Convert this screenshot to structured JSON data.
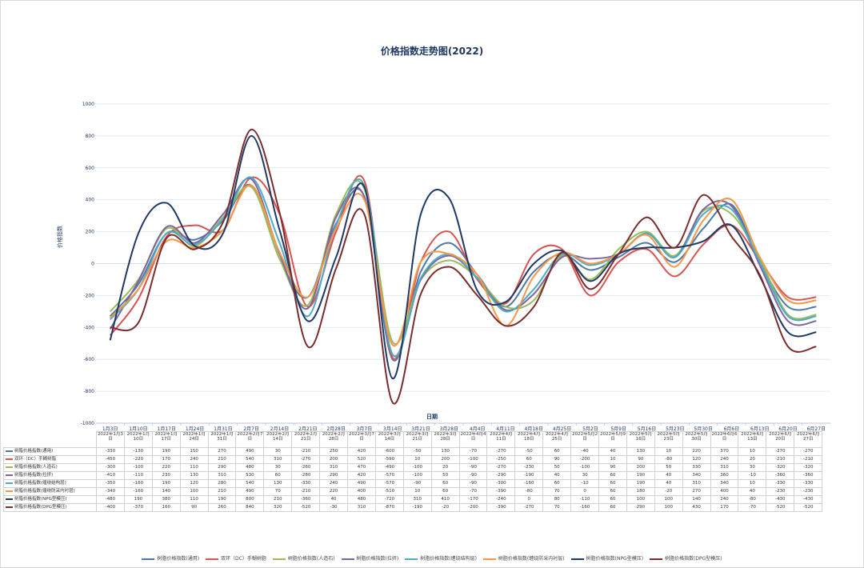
{
  "chart_data": {
    "type": "line",
    "title": "价格指数走势图(2022)",
    "xlabel": "日期",
    "ylabel": "价格指数",
    "ylim": [
      -1000,
      1000
    ],
    "yticks": [
      1000,
      800,
      600,
      400,
      200,
      0,
      -200,
      -400,
      -600,
      -800,
      -1000
    ],
    "grid": true,
    "legend_position": "bottom",
    "x": [
      "1月3日",
      "1月10日",
      "1月17日",
      "1月24日",
      "1月31日",
      "2月7日",
      "2月14日",
      "2月21日",
      "2月28日",
      "3月7日",
      "3月14日",
      "3月21日",
      "3月28日",
      "4月4日",
      "4月11日",
      "4月18日",
      "4月25日",
      "5月2日",
      "5月9日",
      "5月16日",
      "5月23日",
      "5月30日",
      "6月6日",
      "6月13日",
      "6月20日",
      "6月27日"
    ],
    "table_headers": [
      "2022年1月3日",
      "2022年1月10日",
      "2022年1月17日",
      "2022年1月24日",
      "2022年1月31日",
      "2022年2月7日",
      "2022年2月14日",
      "2022年2月21日",
      "2022年2月28日",
      "2022年3月7日",
      "2022年3月14日",
      "2022年3月21日",
      "2022年3月28日",
      "2022年4月4日",
      "2022年4月11日",
      "2022年4月18日",
      "2022年4月25日",
      "2022年5月2日",
      "2022年5月9日",
      "2022年5月16日",
      "2022年5月23日",
      "2022年5月30日",
      "2022年6月6日",
      "2022年6月13日",
      "2022年6月20日",
      "2022年6月27日"
    ],
    "series": [
      {
        "name": "树脂价格指数(通用)",
        "color": "#4e79a7",
        "values": [
          -330,
          -130,
          190,
          150,
          270,
          490,
          30,
          -210,
          250,
          420,
          -600,
          -50,
          130,
          -70,
          -270,
          -50,
          60,
          -40,
          40,
          130,
          10,
          220,
          370,
          10,
          -270,
          -270
        ]
      },
      {
        "name": "双环（DC）手糊树脂",
        "color": "#d9534f",
        "values": [
          -450,
          -220,
          170,
          240,
          210,
          540,
          310,
          -270,
          200,
          520,
          -590,
          10,
          200,
          -100,
          -250,
          60,
          90,
          -200,
          10,
          90,
          -80,
          120,
          240,
          20,
          -210,
          -210
        ]
      },
      {
        "name": "树脂价格指数(人造石)",
        "color": "#9bbb59",
        "values": [
          -300,
          -100,
          220,
          110,
          290,
          480,
          30,
          -260,
          310,
          470,
          -490,
          -100,
          20,
          -90,
          -270,
          -230,
          50,
          -100,
          90,
          200,
          50,
          330,
          310,
          30,
          -320,
          -320
        ]
      },
      {
        "name": "树脂价格指数(拉挤)",
        "color": "#8064a2",
        "values": [
          -410,
          -110,
          230,
          130,
          310,
          530,
          60,
          -280,
          290,
          420,
          -570,
          -100,
          50,
          -90,
          -290,
          -190,
          40,
          30,
          60,
          190,
          40,
          340,
          360,
          -10,
          -360,
          -360
        ]
      },
      {
        "name": "树脂价格指数(缠绕结构层)",
        "color": "#4bacc6",
        "values": [
          -350,
          -160,
          190,
          120,
          280,
          540,
          130,
          -330,
          240,
          490,
          -570,
          -90,
          60,
          -90,
          -300,
          -160,
          60,
          -10,
          60,
          190,
          40,
          310,
          340,
          10,
          -330,
          -330
        ]
      },
      {
        "name": "树脂价格指数(缠绕防采内衬层)",
        "color": "#f79646",
        "values": [
          -340,
          -160,
          140,
          100,
          210,
          490,
          70,
          -210,
          220,
          400,
          -510,
          10,
          60,
          -70,
          -390,
          -80,
          70,
          0,
          60,
          180,
          -20,
          270,
          400,
          40,
          -230,
          -230
        ]
      },
      {
        "name": "树脂价格指数(NPG型模压)",
        "color": "#1f3864",
        "values": [
          -480,
          190,
          380,
          110,
          190,
          800,
          210,
          -360,
          40,
          480,
          -720,
          310,
          410,
          -170,
          -240,
          0,
          80,
          -110,
          60,
          100,
          100,
          140,
          240,
          -80,
          -430,
          -430
        ]
      },
      {
        "name": "树脂价格指数(DPG型模压)",
        "color": "#7b2c2c",
        "values": [
          -400,
          -370,
          160,
          90,
          260,
          840,
          320,
          -520,
          -30,
          310,
          -870,
          -190,
          -20,
          -200,
          -390,
          -270,
          70,
          -160,
          60,
          290,
          100,
          430,
          170,
          -70,
          -520,
          -520
        ]
      }
    ]
  }
}
